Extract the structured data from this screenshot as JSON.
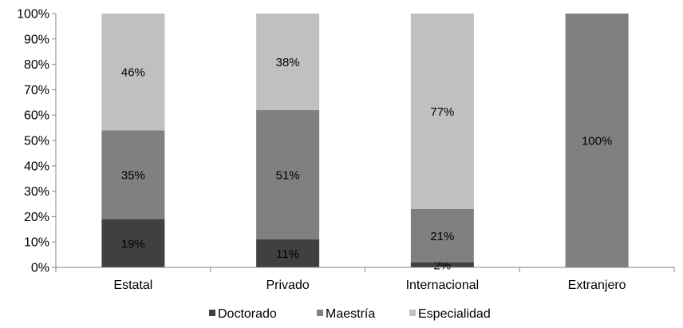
{
  "chart_data": {
    "type": "bar",
    "stacked": true,
    "percent_stacked": true,
    "categories": [
      "Estatal",
      "Privado",
      "Internacional",
      "Extranjero"
    ],
    "series": [
      {
        "name": "Doctorado",
        "color": "#404040",
        "values": [
          19,
          11,
          2,
          0
        ],
        "labels": [
          "19%",
          "11%",
          "2%",
          ""
        ]
      },
      {
        "name": "Maestría",
        "color": "#808080",
        "values": [
          35,
          51,
          21,
          100
        ],
        "labels": [
          "35%",
          "51%",
          "21%",
          "100%"
        ]
      },
      {
        "name": "Especialidad",
        "color": "#c0c0c0",
        "values": [
          46,
          38,
          77,
          0
        ],
        "labels": [
          "46%",
          "38%",
          "77%",
          ""
        ]
      }
    ],
    "ylim": [
      0,
      100
    ],
    "yticks": [
      "0%",
      "10%",
      "20%",
      "30%",
      "40%",
      "50%",
      "60%",
      "70%",
      "80%",
      "90%",
      "100%"
    ],
    "grid": false,
    "legend_position": "bottom",
    "title": "",
    "xlabel": "",
    "ylabel": ""
  }
}
